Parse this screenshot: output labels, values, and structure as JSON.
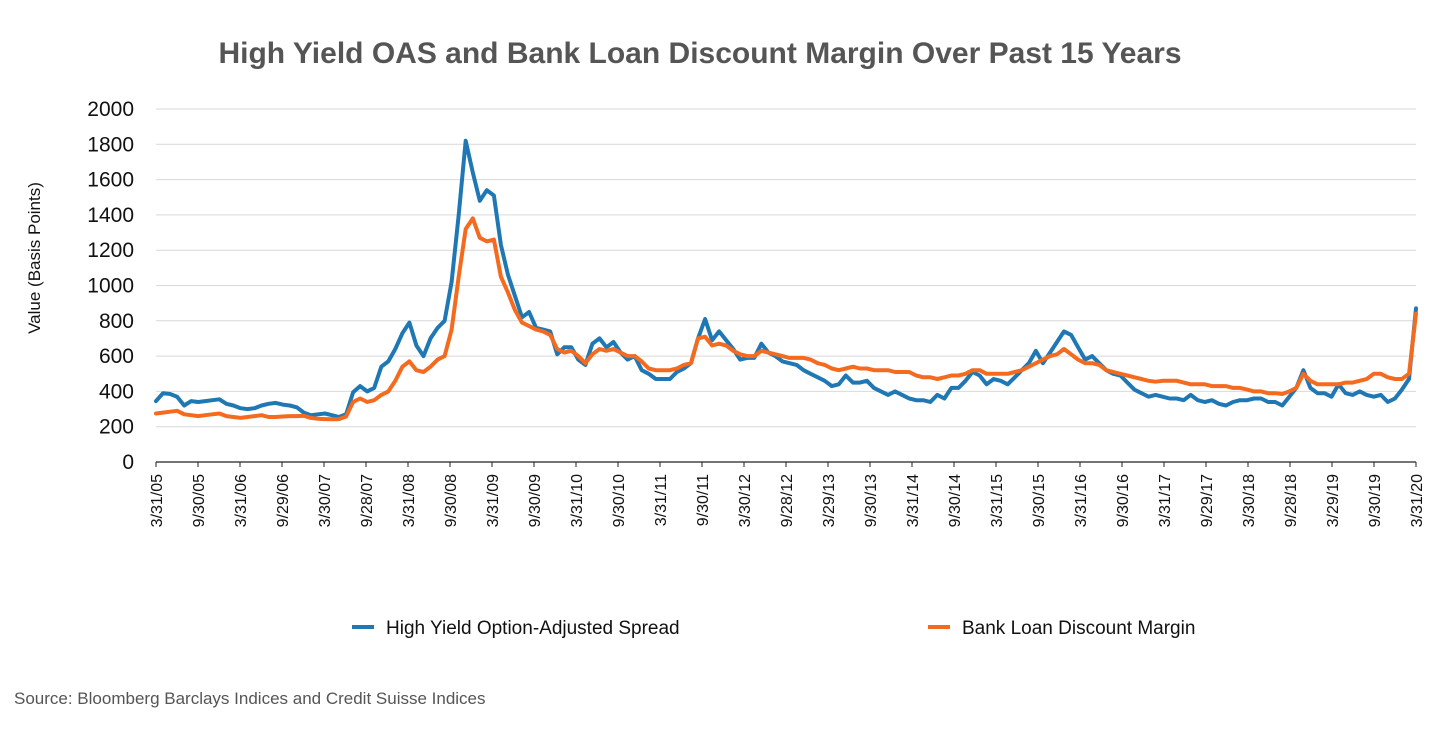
{
  "source": "Source: Bloomberg Barclays Indices and Credit Suisse Indices",
  "chart_data": {
    "type": "line",
    "title": "High Yield OAS and Bank Loan Discount Margin Over Past 15 Years",
    "xlabel": "",
    "ylabel": "Value (Basis Points)",
    "ylim": [
      0,
      2000
    ],
    "yticks": [
      0,
      200,
      400,
      600,
      800,
      1000,
      1200,
      1400,
      1600,
      1800,
      2000
    ],
    "x_start": "3/31/05",
    "x_end": "3/31/20",
    "x_tick_labels": [
      "3/31/05",
      "9/30/05",
      "3/31/06",
      "9/29/06",
      "3/30/07",
      "9/28/07",
      "3/31/08",
      "9/30/08",
      "3/31/09",
      "9/30/09",
      "3/31/10",
      "9/30/10",
      "3/31/11",
      "9/30/11",
      "3/30/12",
      "9/28/12",
      "3/29/13",
      "9/30/13",
      "3/31/14",
      "9/30/14",
      "3/31/15",
      "9/30/15",
      "3/31/16",
      "9/30/16",
      "3/31/17",
      "9/29/17",
      "3/30/18",
      "9/28/18",
      "3/29/19",
      "9/30/19",
      "3/31/20"
    ],
    "grid": true,
    "legend_position": "bottom",
    "series": [
      {
        "name": "High Yield Option-Adjusted Spread",
        "color": "#1f77b4",
        "values": [
          345,
          390,
          385,
          370,
          320,
          345,
          340,
          345,
          350,
          355,
          330,
          320,
          305,
          300,
          305,
          320,
          330,
          335,
          325,
          320,
          310,
          280,
          265,
          270,
          275,
          265,
          255,
          270,
          395,
          430,
          400,
          420,
          540,
          570,
          640,
          730,
          790,
          660,
          600,
          700,
          760,
          800,
          1020,
          1400,
          1820,
          1640,
          1480,
          1540,
          1510,
          1230,
          1060,
          940,
          820,
          850,
          760,
          750,
          740,
          610,
          650,
          650,
          580,
          550,
          670,
          700,
          650,
          680,
          620,
          580,
          600,
          520,
          500,
          470,
          470,
          470,
          510,
          530,
          560,
          700,
          810,
          690,
          740,
          690,
          640,
          580,
          590,
          590,
          670,
          620,
          600,
          570,
          560,
          550,
          520,
          500,
          480,
          460,
          430,
          440,
          490,
          450,
          450,
          460,
          420,
          400,
          380,
          400,
          380,
          360,
          350,
          350,
          340,
          380,
          360,
          420,
          420,
          460,
          510,
          490,
          440,
          470,
          460,
          440,
          480,
          520,
          560,
          630,
          560,
          620,
          680,
          740,
          720,
          650,
          580,
          600,
          560,
          520,
          500,
          490,
          450,
          410,
          390,
          370,
          380,
          370,
          360,
          360,
          350,
          380,
          350,
          340,
          350,
          330,
          320,
          340,
          350,
          350,
          360,
          360,
          340,
          340,
          320,
          370,
          420,
          520,
          420,
          390,
          390,
          370,
          440,
          390,
          380,
          400,
          380,
          370,
          380,
          340,
          360,
          410,
          470,
          870
        ]
      },
      {
        "name": "Bank Loan Discount Margin",
        "color": "#f46a1f",
        "values": [
          275,
          280,
          285,
          290,
          270,
          265,
          260,
          265,
          270,
          275,
          260,
          255,
          250,
          255,
          260,
          265,
          255,
          255,
          258,
          260,
          260,
          262,
          250,
          245,
          243,
          242,
          243,
          258,
          340,
          360,
          340,
          350,
          380,
          400,
          460,
          540,
          570,
          520,
          510,
          540,
          580,
          600,
          750,
          1050,
          1320,
          1380,
          1270,
          1250,
          1260,
          1050,
          960,
          860,
          790,
          770,
          750,
          740,
          720,
          640,
          620,
          630,
          600,
          560,
          610,
          640,
          630,
          640,
          620,
          600,
          600,
          570,
          530,
          520,
          520,
          520,
          530,
          550,
          560,
          700,
          710,
          660,
          670,
          660,
          630,
          610,
          600,
          600,
          630,
          620,
          610,
          600,
          590,
          590,
          590,
          580,
          560,
          550,
          530,
          520,
          530,
          540,
          530,
          530,
          520,
          520,
          520,
          510,
          510,
          510,
          490,
          480,
          480,
          470,
          480,
          490,
          490,
          500,
          520,
          520,
          500,
          500,
          500,
          500,
          510,
          520,
          540,
          560,
          580,
          600,
          610,
          640,
          610,
          580,
          560,
          560,
          550,
          520,
          510,
          500,
          490,
          480,
          470,
          460,
          455,
          460,
          460,
          460,
          450,
          440,
          440,
          440,
          430,
          430,
          430,
          420,
          420,
          410,
          400,
          400,
          390,
          390,
          385,
          400,
          420,
          500,
          460,
          440,
          440,
          440,
          440,
          450,
          450,
          460,
          470,
          500,
          500,
          480,
          470,
          470,
          500,
          840
        ]
      }
    ]
  }
}
